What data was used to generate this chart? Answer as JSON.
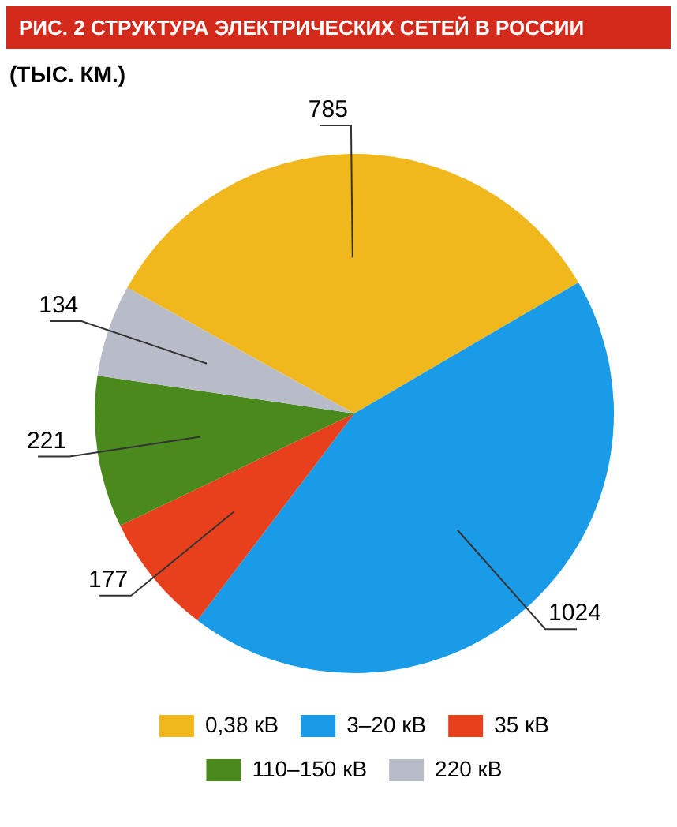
{
  "chart_data": {
    "type": "pie",
    "title": "РИС. 2 СТРУКТУРА ЭЛЕКТРИЧЕСКИХ СЕТЕЙ В РОССИИ",
    "subtitle": "(ТЫС. КМ.)",
    "categories": [
      "0,38 кВ",
      "3–20 кВ",
      "35 кВ",
      "110–150 кВ",
      "220 кВ"
    ],
    "values": [
      785,
      1024,
      177,
      221,
      134
    ],
    "colors": [
      "#f0b81c",
      "#1a9be8",
      "#e8401c",
      "#4a8a1c",
      "#b8bcc8"
    ],
    "data_labels": true,
    "legend": "bottom"
  }
}
